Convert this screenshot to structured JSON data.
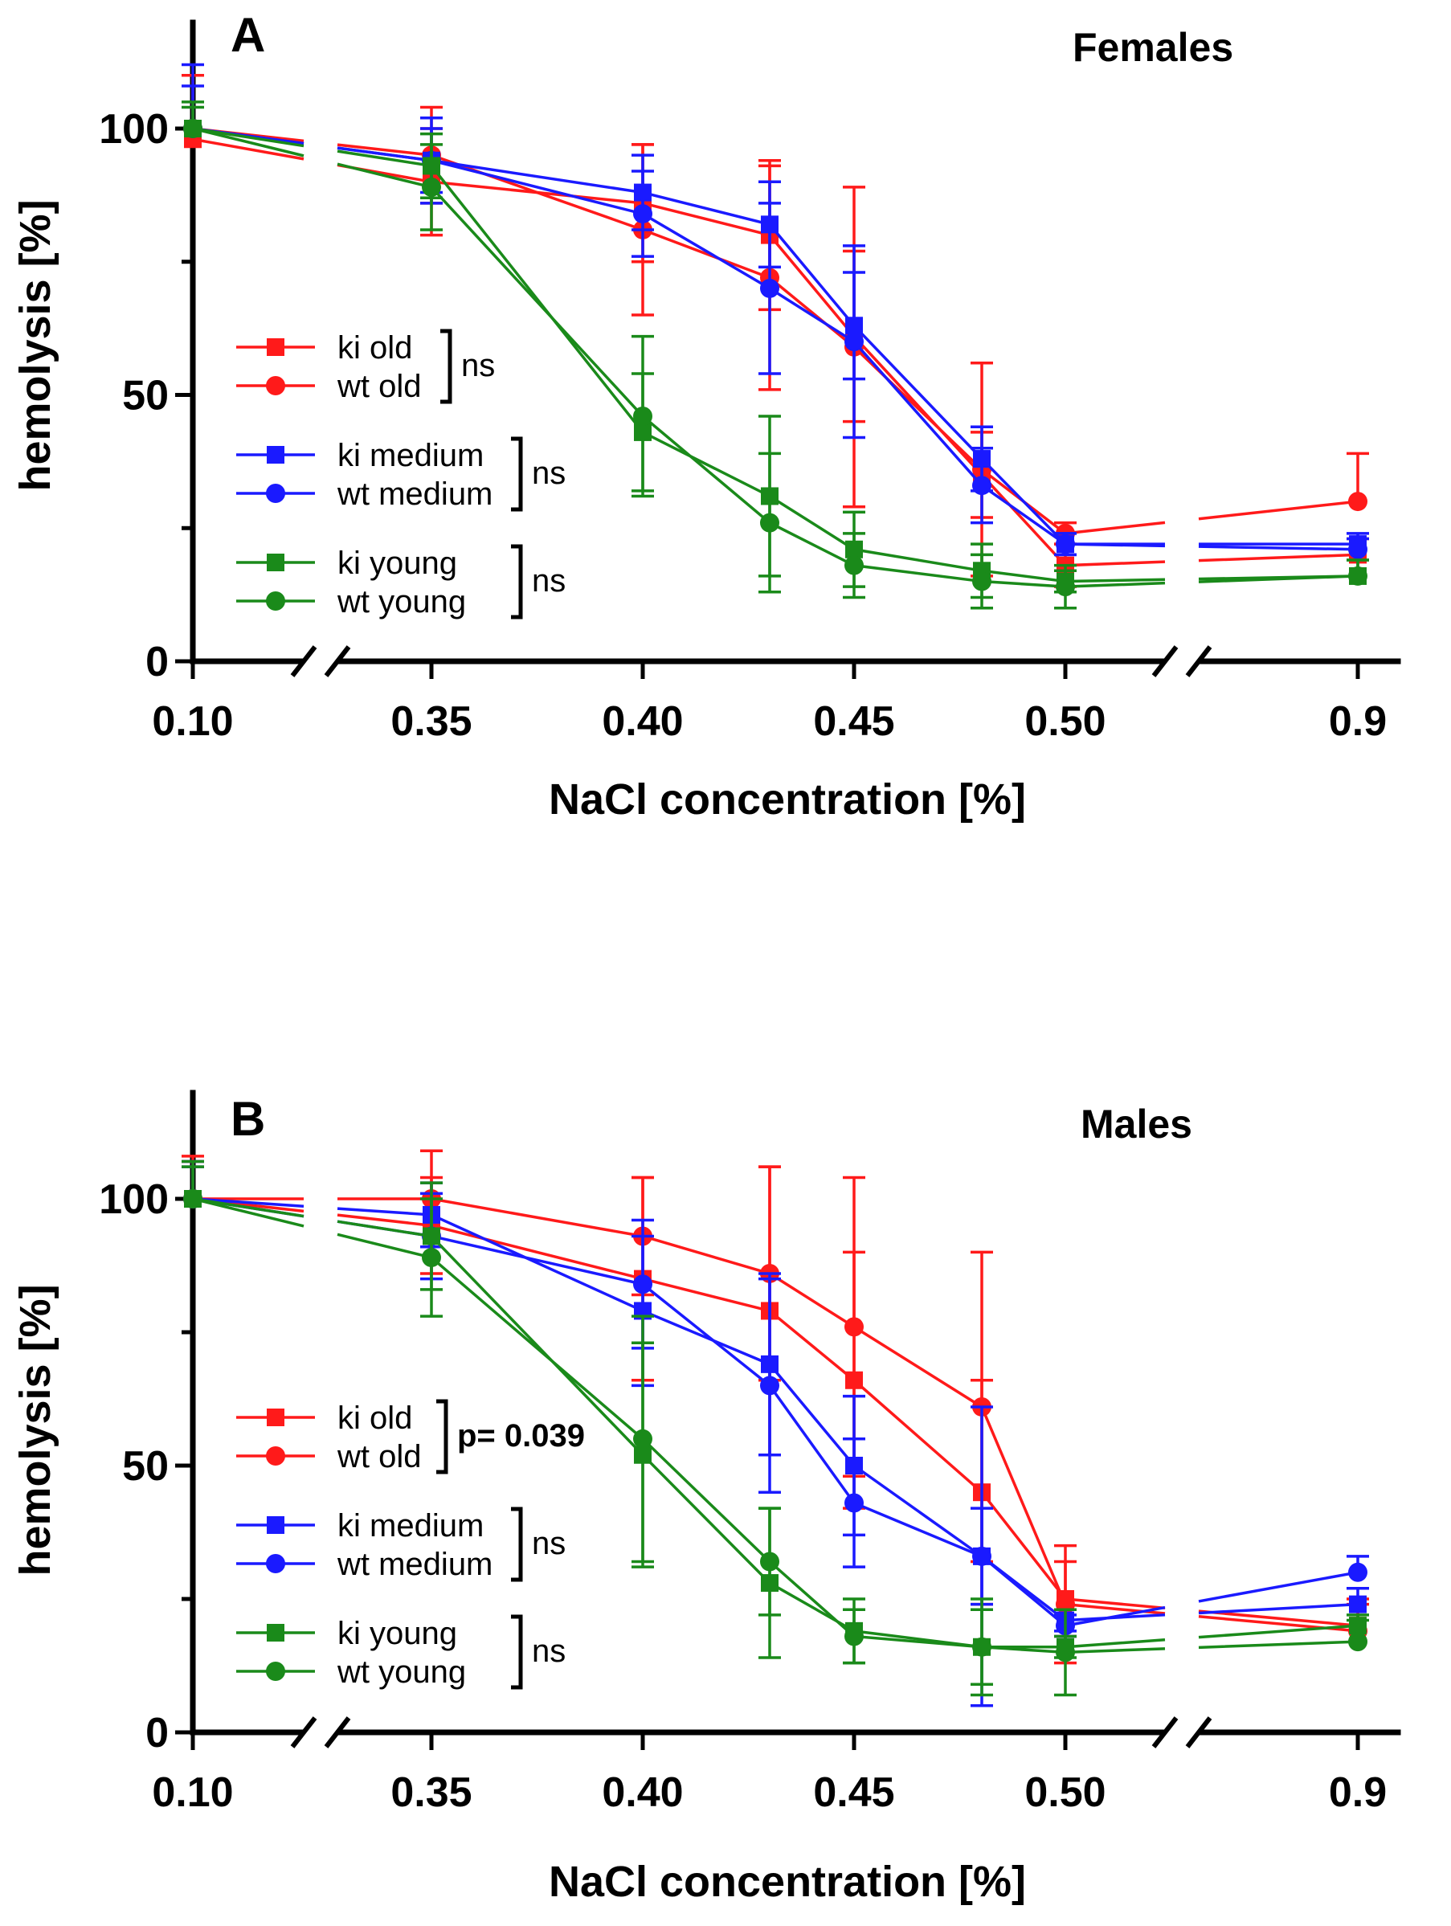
{
  "chart_data": [
    {
      "type": "line",
      "panel_label": "A",
      "title": "Females",
      "xlabel": "NaCl concentration [%]",
      "ylabel": "hemolysis [%]",
      "ylim": [
        0,
        120
      ],
      "y_ticks": [
        "0",
        "50",
        "100"
      ],
      "x_ticks": [
        "0.10",
        "0.35",
        "0.40",
        "0.45",
        "0.50",
        "0.9"
      ],
      "x": [
        0.1,
        0.35,
        0.4,
        0.43,
        0.45,
        0.48,
        0.5,
        0.9
      ],
      "colors": {
        "old": "#ff1a1a",
        "medium": "#1a1aff",
        "young": "#1a8a1a"
      },
      "series": [
        {
          "name": "ki old",
          "group": "old",
          "marker": "square",
          "values": [
            98,
            90,
            86,
            80,
            61,
            35,
            18,
            20
          ],
          "err": [
            12,
            10,
            11,
            14,
            16,
            8,
            4,
            3
          ]
        },
        {
          "name": "wt old",
          "group": "old",
          "marker": "circle",
          "values": [
            100,
            95,
            81,
            72,
            59,
            36,
            24,
            30
          ],
          "err": [
            10,
            9,
            16,
            21,
            30,
            20,
            2,
            9
          ]
        },
        {
          "name": "ki medium",
          "group": "medium",
          "marker": "square",
          "values": [
            100,
            94,
            88,
            82,
            63,
            38,
            22,
            22
          ],
          "err": [
            8,
            6,
            7,
            8,
            10,
            6,
            2,
            2
          ]
        },
        {
          "name": "wt medium",
          "group": "medium",
          "marker": "circle",
          "values": [
            100,
            94,
            84,
            70,
            60,
            33,
            22,
            21
          ],
          "err": [
            12,
            8,
            8,
            16,
            18,
            7,
            2,
            2
          ]
        },
        {
          "name": "ki young",
          "group": "young",
          "marker": "square",
          "values": [
            100,
            93,
            43,
            31,
            21,
            17,
            15,
            16
          ],
          "err": [
            5,
            6,
            11,
            15,
            7,
            5,
            2,
            3
          ]
        },
        {
          "name": "wt young",
          "group": "young",
          "marker": "circle",
          "values": [
            100,
            89,
            46,
            26,
            18,
            15,
            14,
            16
          ],
          "err": [
            4,
            8,
            15,
            13,
            6,
            5,
            4,
            3
          ]
        }
      ],
      "legend_groups": [
        {
          "group": "old",
          "labels": [
            "ki  old",
            "wt old"
          ],
          "stat": "ns",
          "stat_bold": false
        },
        {
          "group": "medium",
          "labels": [
            "ki  medium",
            "wt medium"
          ],
          "stat": "ns",
          "stat_bold": false
        },
        {
          "group": "young",
          "labels": [
            "ki  young",
            "wt young"
          ],
          "stat": "ns",
          "stat_bold": false
        }
      ]
    },
    {
      "type": "line",
      "panel_label": "B",
      "title": "Males",
      "xlabel": "NaCl concentration [%]",
      "ylabel": "hemolysis [%]",
      "ylim": [
        0,
        120
      ],
      "y_ticks": [
        "0",
        "50",
        "100"
      ],
      "x_ticks": [
        "0.10",
        "0.35",
        "0.40",
        "0.45",
        "0.50",
        "0.9"
      ],
      "x": [
        0.1,
        0.35,
        0.4,
        0.43,
        0.45,
        0.48,
        0.5,
        0.9
      ],
      "colors": {
        "old": "#ff1a1a",
        "medium": "#1a1aff",
        "young": "#1a8a1a"
      },
      "series": [
        {
          "name": "ki old",
          "group": "old",
          "marker": "square",
          "values": [
            100,
            95,
            85,
            79,
            66,
            45,
            25,
            20
          ],
          "err": [
            7,
            9,
            19,
            27,
            24,
            21,
            7,
            4
          ]
        },
        {
          "name": "wt old",
          "group": "old",
          "marker": "circle",
          "values": [
            100,
            100,
            93,
            86,
            76,
            61,
            24,
            19
          ],
          "err": [
            8,
            9,
            11,
            20,
            28,
            29,
            11,
            6
          ]
        },
        {
          "name": "ki medium",
          "group": "medium",
          "marker": "square",
          "values": [
            100,
            97,
            79,
            69,
            50,
            33,
            21,
            24
          ],
          "err": [
            6,
            6,
            14,
            17,
            13,
            9,
            2,
            3
          ]
        },
        {
          "name": "wt medium",
          "group": "medium",
          "marker": "circle",
          "values": [
            100,
            93,
            84,
            65,
            43,
            33,
            20,
            30
          ],
          "err": [
            7,
            8,
            12,
            20,
            12,
            28,
            2,
            3
          ]
        },
        {
          "name": "ki young",
          "group": "young",
          "marker": "square",
          "values": [
            100,
            93,
            52,
            28,
            19,
            16,
            16,
            20
          ],
          "err": [
            6,
            10,
            21,
            14,
            6,
            7,
            2,
            2
          ]
        },
        {
          "name": "wt young",
          "group": "young",
          "marker": "circle",
          "values": [
            100,
            89,
            55,
            32,
            18,
            16,
            15,
            17
          ],
          "err": [
            7,
            11,
            23,
            10,
            5,
            9,
            8,
            4
          ]
        }
      ],
      "legend_groups": [
        {
          "group": "old",
          "labels": [
            "ki old",
            "wt old"
          ],
          "stat": "p= 0.039",
          "stat_bold": true
        },
        {
          "group": "medium",
          "labels": [
            "ki medium",
            "wt medium"
          ],
          "stat": "ns",
          "stat_bold": false
        },
        {
          "group": "young",
          "labels": [
            "ki young",
            "wt young"
          ],
          "stat": "ns",
          "stat_bold": false
        }
      ]
    }
  ]
}
